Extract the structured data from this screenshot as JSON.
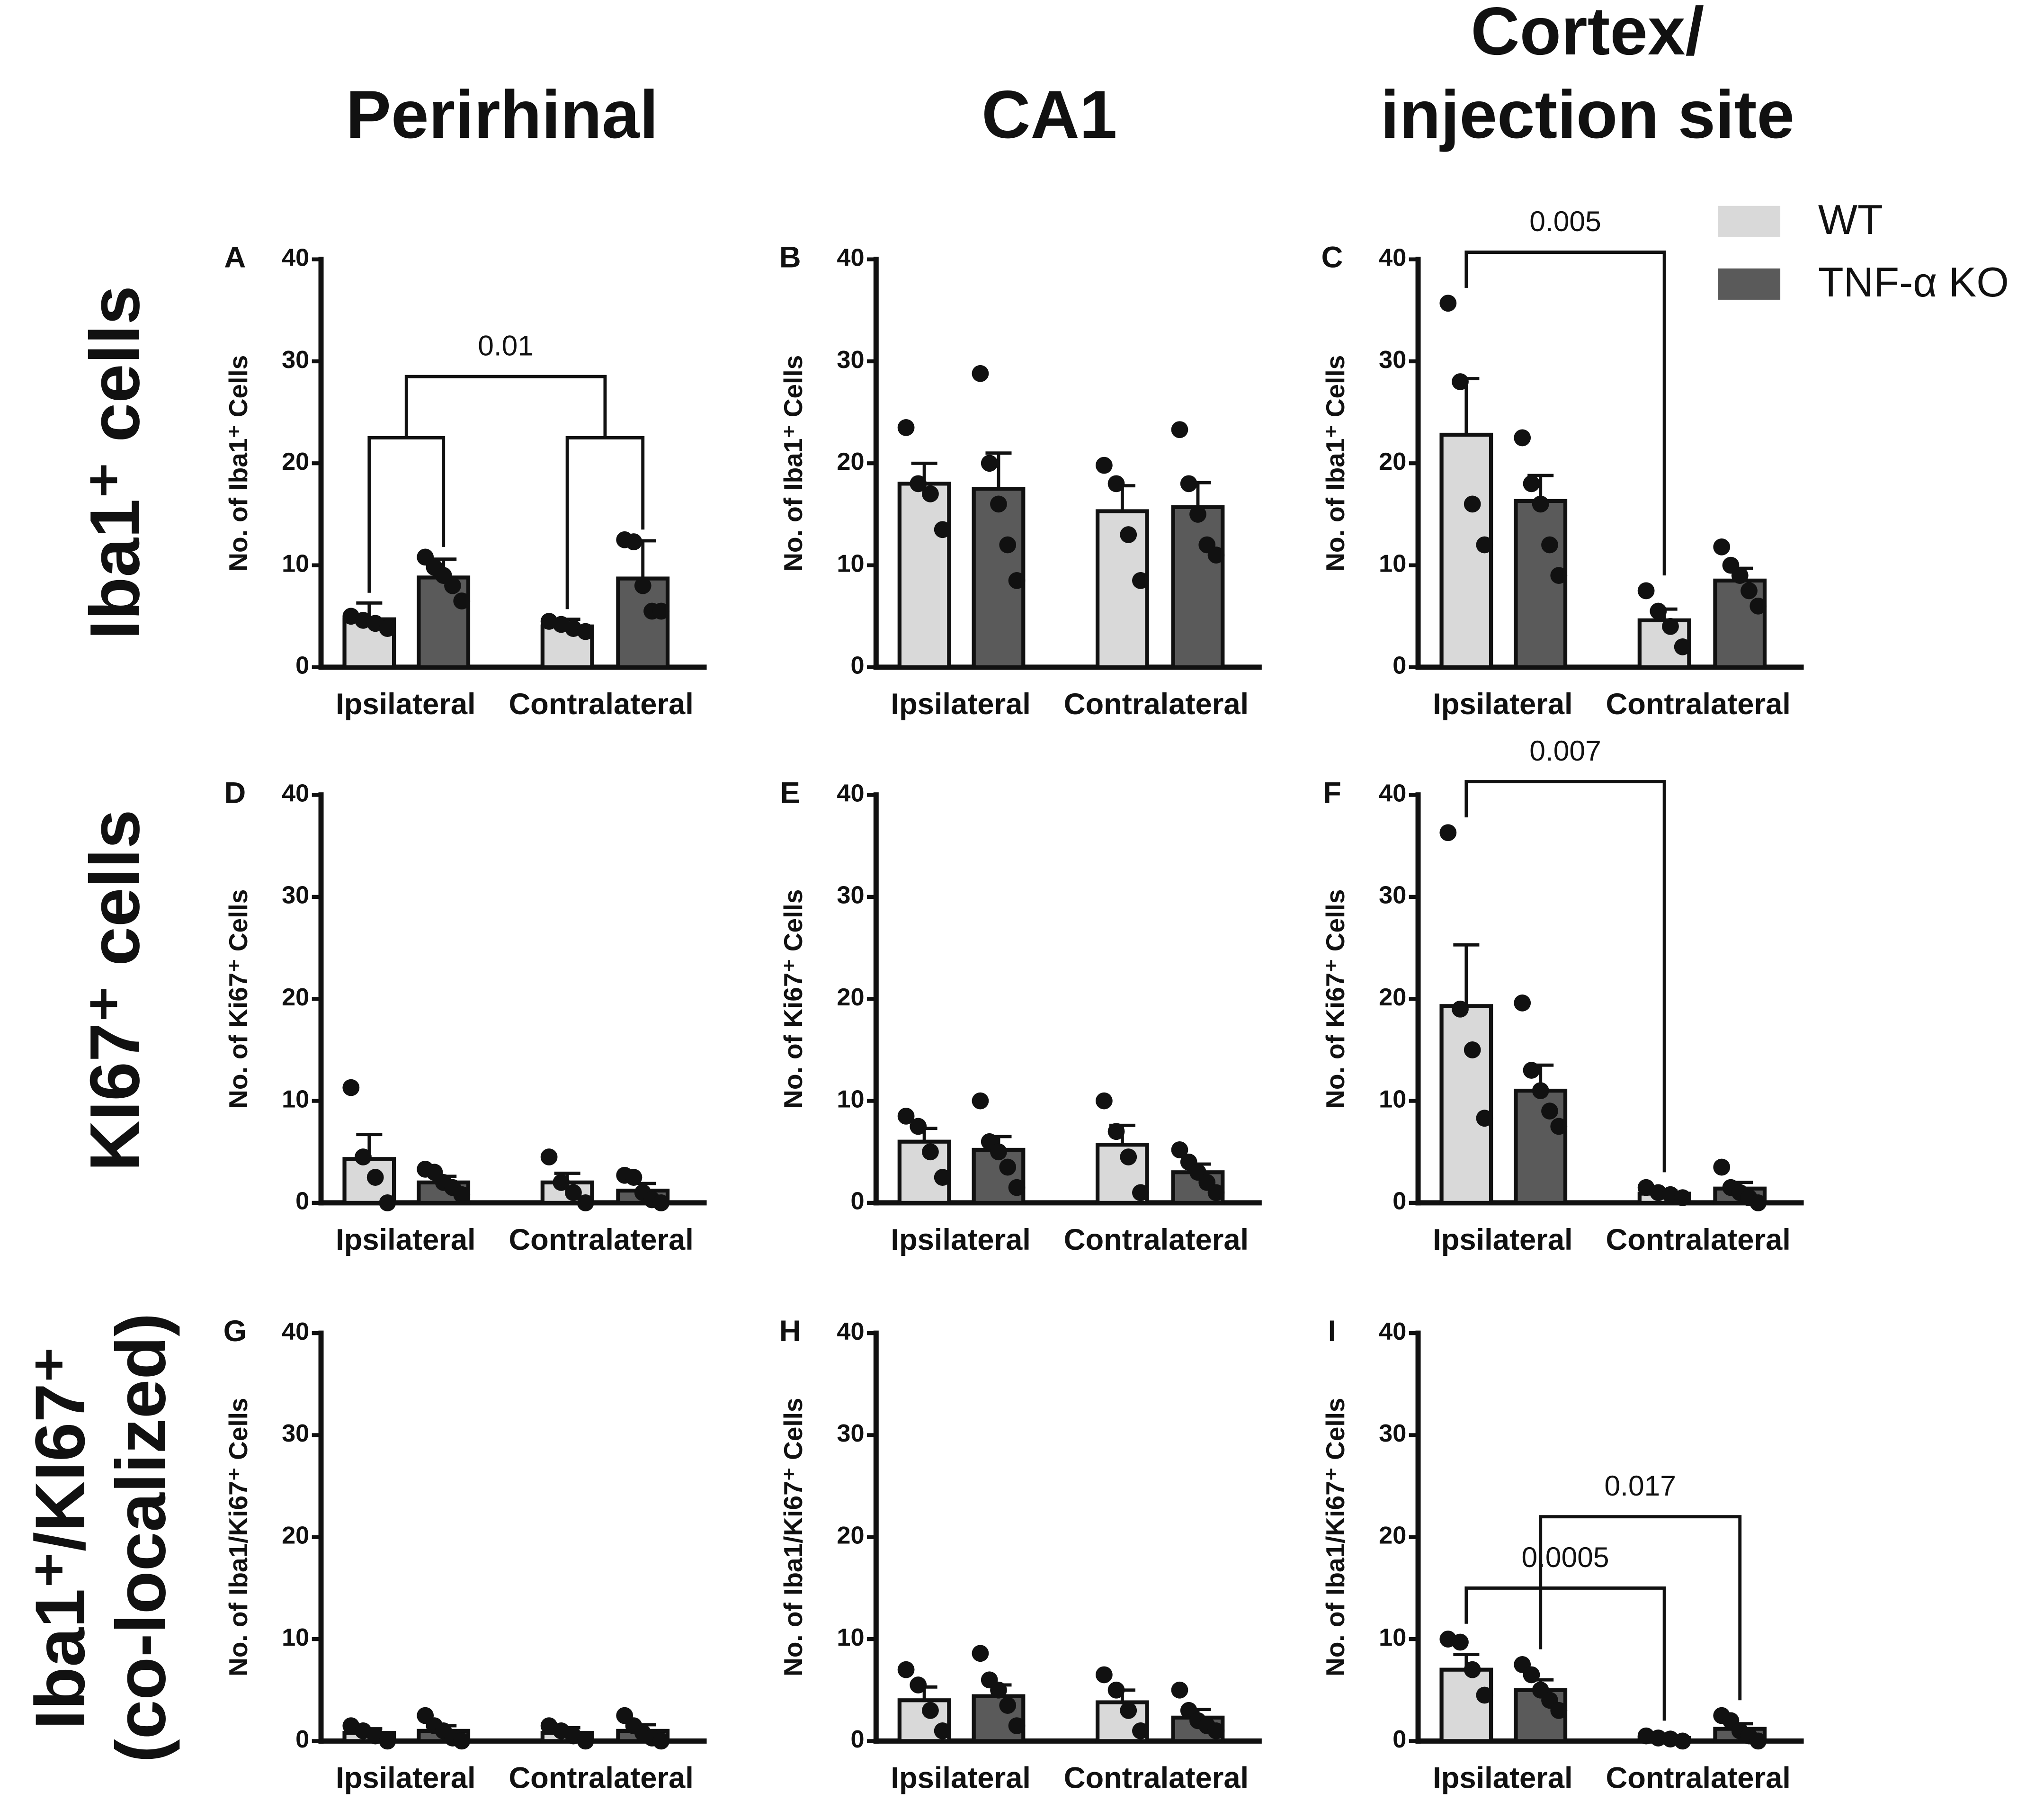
{
  "column_titles": [
    [
      "Perirhinal"
    ],
    [
      "CA1"
    ],
    [
      "Cortex/",
      "injection site"
    ]
  ],
  "row_titles": [
    [
      "Iba1⁺ cells"
    ],
    [
      "KI67⁺ cells"
    ],
    [
      "Iba1⁺/KI67⁺",
      "(co-localized)"
    ]
  ],
  "legend": [
    {
      "name": "WT",
      "color": "#d9d9d9"
    },
    {
      "name": "TNF-α KO",
      "color": "#5a5a5a"
    }
  ],
  "chart_data": [
    {
      "type": "bar",
      "panel": "A",
      "ylabel": "No. of Iba1⁺ Cells",
      "categories": [
        "Ipsilateral",
        "Contralateral"
      ],
      "ylim": [
        0,
        40
      ],
      "yticks": [
        0,
        10,
        20,
        30,
        40
      ],
      "series": [
        {
          "values": [
            4.7,
            4.0
          ],
          "errors": [
            1.6,
            0.7
          ],
          "points": [
            [
              5.0,
              4.6,
              4.3,
              3.8
            ],
            [
              4.5,
              4.2,
              3.8,
              3.5
            ]
          ]
        },
        {
          "values": [
            8.8,
            8.7
          ],
          "errors": [
            1.8,
            3.7
          ],
          "points": [
            [
              10.8,
              9.8,
              9.0,
              8.0,
              6.5
            ],
            [
              12.5,
              12.3,
              8.0,
              5.5,
              5.5
            ]
          ]
        }
      ],
      "annotations": [
        {
          "label": "0.01",
          "from": 0,
          "to": 1
        }
      ]
    },
    {
      "type": "bar",
      "panel": "B",
      "ylabel": "No. of Iba1⁺ Cells",
      "categories": [
        "Ipsilateral",
        "Contralateral"
      ],
      "ylim": [
        0,
        40
      ],
      "yticks": [
        0,
        10,
        20,
        30,
        40
      ],
      "series": [
        {
          "values": [
            18.0,
            15.3
          ],
          "errors": [
            2.0,
            2.5
          ],
          "points": [
            [
              23.5,
              18.0,
              17.0,
              13.5
            ],
            [
              19.8,
              18.0,
              13.0,
              8.5
            ]
          ]
        },
        {
          "values": [
            17.5,
            15.7
          ],
          "errors": [
            3.5,
            2.4
          ],
          "points": [
            [
              28.8,
              20.0,
              16.0,
              12.0,
              8.5
            ],
            [
              23.3,
              18.0,
              15.0,
              12.0,
              11.0
            ]
          ]
        }
      ],
      "annotations": []
    },
    {
      "type": "bar",
      "panel": "C",
      "ylabel": "No. of Iba1⁺ Cells",
      "categories": [
        "Ipsilateral",
        "Contralateral"
      ],
      "ylim": [
        0,
        40
      ],
      "yticks": [
        0,
        10,
        20,
        30,
        40
      ],
      "series": [
        {
          "values": [
            22.8,
            4.6
          ],
          "errors": [
            5.5,
            1.1
          ],
          "points": [
            [
              35.7,
              28.0,
              16.0,
              12.0
            ],
            [
              7.5,
              5.5,
              4.0,
              2.0
            ]
          ]
        },
        {
          "values": [
            16.3,
            8.5
          ],
          "errors": [
            2.5,
            1.2
          ],
          "points": [
            [
              22.5,
              18.0,
              16.0,
              12.0,
              9.0
            ],
            [
              11.8,
              10.0,
              9.0,
              7.5,
              6.0
            ]
          ]
        }
      ],
      "annotations": [
        {
          "label": "0.005",
          "from": 0,
          "to": 1,
          "series": 0
        }
      ]
    },
    {
      "type": "bar",
      "panel": "D",
      "ylabel": "No. of Ki67⁺ Cells",
      "categories": [
        "Ipsilateral",
        "Contralateral"
      ],
      "ylim": [
        0,
        40
      ],
      "yticks": [
        0,
        10,
        20,
        30,
        40
      ],
      "series": [
        {
          "values": [
            4.3,
            2.0
          ],
          "errors": [
            2.4,
            0.9
          ],
          "points": [
            [
              11.3,
              4.5,
              2.5,
              0
            ],
            [
              4.5,
              2.0,
              1.0,
              0
            ]
          ]
        },
        {
          "values": [
            2.0,
            1.2
          ],
          "errors": [
            0.6,
            0.7
          ],
          "points": [
            [
              3.3,
              3.0,
              2.0,
              1.5,
              0.8
            ],
            [
              2.7,
              2.5,
              1.0,
              0.3,
              0
            ]
          ]
        }
      ],
      "annotations": []
    },
    {
      "type": "bar",
      "panel": "E",
      "ylabel": "No. of Ki67⁺ Cells",
      "categories": [
        "Ipsilateral",
        "Contralateral"
      ],
      "ylim": [
        0,
        40
      ],
      "yticks": [
        0,
        10,
        20,
        30,
        40
      ],
      "series": [
        {
          "values": [
            6.0,
            5.7
          ],
          "errors": [
            1.3,
            1.9
          ],
          "points": [
            [
              8.5,
              7.5,
              5.0,
              2.5
            ],
            [
              10.0,
              7.0,
              4.5,
              1.0
            ]
          ]
        },
        {
          "values": [
            5.2,
            3.0
          ],
          "errors": [
            1.3,
            0.8
          ],
          "points": [
            [
              10.0,
              6.0,
              5.0,
              3.5,
              1.5
            ],
            [
              5.2,
              4.0,
              3.0,
              2.0,
              1.0
            ]
          ]
        }
      ],
      "annotations": []
    },
    {
      "type": "bar",
      "panel": "F",
      "ylabel": "No. of Ki67⁺ Cells",
      "categories": [
        "Ipsilateral",
        "Contralateral"
      ],
      "ylim": [
        0,
        40
      ],
      "yticks": [
        0,
        10,
        20,
        30,
        40
      ],
      "series": [
        {
          "values": [
            19.3,
            0.9
          ],
          "errors": [
            6.0,
            0.3
          ],
          "points": [
            [
              36.3,
              19.0,
              15.0,
              8.3
            ],
            [
              1.5,
              1.0,
              0.8,
              0.5
            ]
          ]
        },
        {
          "values": [
            11.0,
            1.4
          ],
          "errors": [
            2.5,
            0.6
          ],
          "points": [
            [
              19.6,
              13.0,
              11.0,
              9.0,
              7.5
            ],
            [
              3.5,
              1.5,
              1.0,
              0.5,
              0
            ]
          ]
        }
      ],
      "annotations": [
        {
          "label": "0.007",
          "from": 0,
          "to": 1,
          "series": 0
        }
      ]
    },
    {
      "type": "bar",
      "panel": "G",
      "ylabel": "No. of Iba1/Ki67⁺ Cells",
      "categories": [
        "Ipsilateral",
        "Contralateral"
      ],
      "ylim": [
        0,
        40
      ],
      "yticks": [
        0,
        10,
        20,
        30,
        40
      ],
      "series": [
        {
          "values": [
            0.8,
            0.8
          ],
          "errors": [
            0.4,
            0.5
          ],
          "points": [
            [
              1.5,
              1.0,
              0.5,
              0
            ],
            [
              1.5,
              1.0,
              0.5,
              0
            ]
          ]
        },
        {
          "values": [
            1.0,
            1.0
          ],
          "errors": [
            0.5,
            0.6
          ],
          "points": [
            [
              2.5,
              1.5,
              1.0,
              0.3,
              0
            ],
            [
              2.5,
              1.5,
              0.8,
              0.3,
              0
            ]
          ]
        }
      ],
      "annotations": []
    },
    {
      "type": "bar",
      "panel": "H",
      "ylabel": "No. of Iba1/Ki67⁺ Cells",
      "categories": [
        "Ipsilateral",
        "Contralateral"
      ],
      "ylim": [
        0,
        40
      ],
      "yticks": [
        0,
        10,
        20,
        30,
        40
      ],
      "series": [
        {
          "values": [
            4.0,
            3.8
          ],
          "errors": [
            1.3,
            1.2
          ],
          "points": [
            [
              7.0,
              5.5,
              3.0,
              1.0
            ],
            [
              6.5,
              5.0,
              3.0,
              1.0
            ]
          ]
        },
        {
          "values": [
            4.4,
            2.3
          ],
          "errors": [
            1.1,
            0.8
          ],
          "points": [
            [
              8.6,
              6.0,
              5.0,
              3.5,
              1.5
            ],
            [
              5.0,
              3.0,
              2.0,
              1.5,
              1.0
            ]
          ]
        }
      ],
      "annotations": []
    },
    {
      "type": "bar",
      "panel": "I",
      "ylabel": "No. of Iba1/Ki67⁺ Cells",
      "categories": [
        "Ipsilateral",
        "Contralateral"
      ],
      "ylim": [
        0,
        40
      ],
      "yticks": [
        0,
        10,
        20,
        30,
        40
      ],
      "series": [
        {
          "values": [
            7.0,
            0.3
          ],
          "errors": [
            1.5,
            0.2
          ],
          "points": [
            [
              10.0,
              9.7,
              7.0,
              4.5
            ],
            [
              0.5,
              0.3,
              0.2,
              0
            ]
          ]
        },
        {
          "values": [
            5.0,
            1.2
          ],
          "errors": [
            1.0,
            0.5
          ],
          "points": [
            [
              7.5,
              6.5,
              5.0,
              4.0,
              3.0
            ],
            [
              2.5,
              2.0,
              1.0,
              0.5,
              0
            ]
          ]
        }
      ],
      "annotations": [
        {
          "label": "0.0005",
          "from": 0,
          "to": 1,
          "series": 0
        },
        {
          "label": "0.017",
          "from": 0,
          "to": 1,
          "series": 1
        }
      ]
    }
  ]
}
